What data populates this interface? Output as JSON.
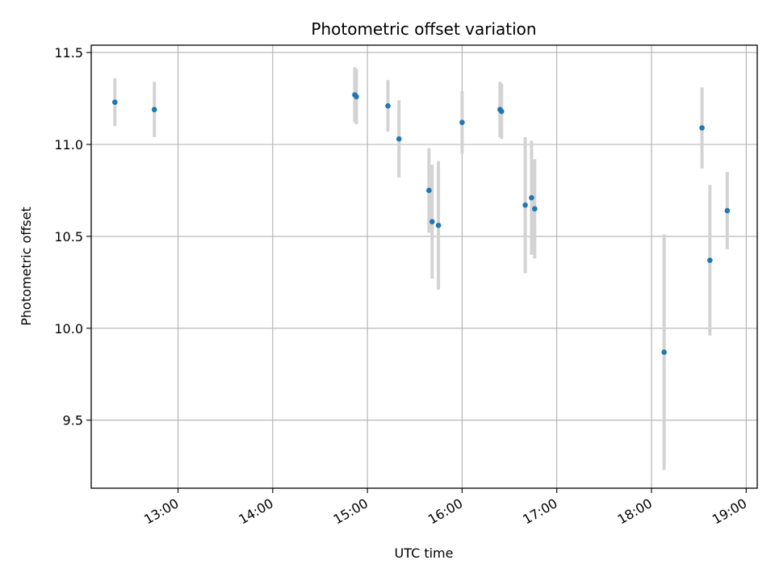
{
  "chart_data": {
    "type": "scatter",
    "title": "Photometric offset variation",
    "xlabel": "UTC time",
    "ylabel": "Photometric offset",
    "x_axis_kind": "time",
    "xlim": [
      "12:05",
      "19:07"
    ],
    "ylim": [
      9.13,
      11.54
    ],
    "x_ticks": [
      "13:00",
      "14:00",
      "15:00",
      "16:00",
      "17:00",
      "18:00",
      "19:00"
    ],
    "y_ticks": [
      9.5,
      10.0,
      10.5,
      11.0,
      11.5
    ],
    "y_tick_labels": [
      "9.5",
      "10.0",
      "10.5",
      "11.0",
      "11.5"
    ],
    "grid": true,
    "errorbar_color": "#d3d3d3",
    "marker_color": "#1f77b4",
    "points": [
      {
        "x": "12:20",
        "y": 11.23,
        "yerr": 0.13
      },
      {
        "x": "12:45",
        "y": 11.19,
        "yerr": 0.15
      },
      {
        "x": "14:52",
        "y": 11.27,
        "yerr": 0.15
      },
      {
        "x": "14:53",
        "y": 11.26,
        "yerr": 0.15
      },
      {
        "x": "15:13",
        "y": 11.21,
        "yerr": 0.14
      },
      {
        "x": "15:20",
        "y": 11.03,
        "yerr": 0.21
      },
      {
        "x": "15:39",
        "y": 10.75,
        "yerr": 0.23
      },
      {
        "x": "15:41",
        "y": 10.58,
        "yerr": 0.31
      },
      {
        "x": "15:45",
        "y": 10.56,
        "yerr": 0.35
      },
      {
        "x": "16:00",
        "y": 11.12,
        "yerr": 0.17
      },
      {
        "x": "16:24",
        "y": 11.19,
        "yerr": 0.15
      },
      {
        "x": "16:25",
        "y": 11.18,
        "yerr": 0.15
      },
      {
        "x": "16:40",
        "y": 10.67,
        "yerr": 0.37
      },
      {
        "x": "16:44",
        "y": 10.71,
        "yerr": 0.31
      },
      {
        "x": "16:46",
        "y": 10.65,
        "yerr": 0.27
      },
      {
        "x": "18:08",
        "y": 9.87,
        "yerr": 0.64
      },
      {
        "x": "18:32",
        "y": 11.09,
        "yerr": 0.22
      },
      {
        "x": "18:37",
        "y": 10.37,
        "yerr": 0.41
      },
      {
        "x": "18:48",
        "y": 10.64,
        "yerr": 0.21
      }
    ]
  }
}
